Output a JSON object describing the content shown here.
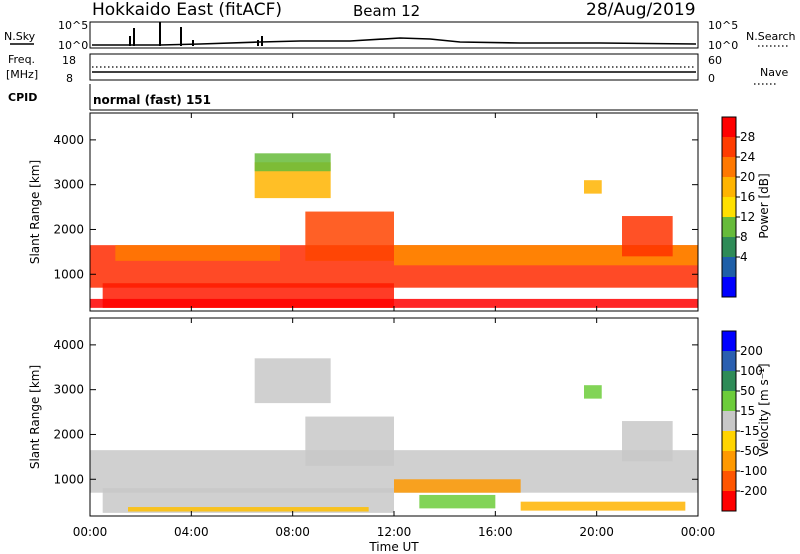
{
  "header": {
    "station": "Hokkaido East (fitACF)",
    "beam": "Beam 12",
    "date": "28/Aug/2019"
  },
  "side_labels": {
    "nsky": "N.Sky",
    "nsearch": "N.Search",
    "freq_line1": "Freq.",
    "freq_line2": "[MHz]",
    "nave": "Nave",
    "cpid": "CPID"
  },
  "noise_panel": {
    "left_ticks": [
      "10^5",
      "10^0"
    ],
    "right_ticks": [
      "10^5",
      "10^0"
    ]
  },
  "freq_panel": {
    "left_ticks": [
      "18",
      "8"
    ],
    "right_ticks": [
      "60",
      "0"
    ]
  },
  "cpid_panel": {
    "label": "normal (fast) 151"
  },
  "power_colorbar": {
    "title": "Power [dB]",
    "ticks": [
      "28",
      "24",
      "20",
      "16",
      "12",
      "8",
      "4"
    ],
    "colors": [
      "#ff0000",
      "#ff3c00",
      "#ff7800",
      "#ffb400",
      "#ffe000",
      "#66bb3a",
      "#2e8b57",
      "#1e5fa8",
      "#0000ff"
    ]
  },
  "velocity_colorbar": {
    "title": "Velocity [m s⁻¹]",
    "ticks": [
      "200",
      "100",
      "50",
      "15",
      "-15",
      "-50",
      "-100",
      "-200"
    ],
    "colors": [
      "#0000ff",
      "#2a5fb0",
      "#2e8b57",
      "#6ccc3a",
      "#c8c8c8",
      "#ffd400",
      "#ff9900",
      "#ff5500",
      "#ff0000"
    ]
  },
  "chart_data": [
    {
      "type": "heatmap",
      "panel": "power",
      "ylabel": "Slant Range [km]",
      "xlim": [
        "00:00",
        "24:00"
      ],
      "ylim": [
        180,
        4600
      ],
      "yticks": [
        1000,
        2000,
        3000,
        4000
      ],
      "regions": [
        {
          "t": [
            0.0,
            24.0
          ],
          "r": [
            700,
            1650
          ],
          "color": "#ff2a00"
        },
        {
          "t": [
            0.5,
            12.0
          ],
          "r": [
            250,
            800
          ],
          "color": "#ff1a00"
        },
        {
          "t": [
            1.0,
            7.5
          ],
          "r": [
            1300,
            1650
          ],
          "color": "#ff7a00"
        },
        {
          "t": [
            6.5,
            9.5
          ],
          "r": [
            2700,
            3500
          ],
          "color": "#ffb400"
        },
        {
          "t": [
            6.5,
            9.5
          ],
          "r": [
            3300,
            3700
          ],
          "color": "#66bb3a"
        },
        {
          "t": [
            8.5,
            12.0
          ],
          "r": [
            1300,
            2400
          ],
          "color": "#ff4400"
        },
        {
          "t": [
            12.0,
            24.0
          ],
          "r": [
            1200,
            1650
          ],
          "color": "#ff8c00"
        },
        {
          "t": [
            19.5,
            20.2
          ],
          "r": [
            2800,
            3100
          ],
          "color": "#ffb400"
        },
        {
          "t": [
            21.0,
            23.0
          ],
          "r": [
            1400,
            2300
          ],
          "color": "#ff3300"
        },
        {
          "t": [
            0.0,
            24.0
          ],
          "r": [
            250,
            450
          ],
          "color": "#ff0000"
        }
      ]
    },
    {
      "type": "heatmap",
      "panel": "velocity",
      "ylabel": "Slant Range [km]",
      "xlabel": "Time UT",
      "xlim": [
        "00:00",
        "24:00"
      ],
      "ylim": [
        180,
        4600
      ],
      "xticks": [
        "00:00",
        "04:00",
        "08:00",
        "12:00",
        "16:00",
        "20:00",
        "00:00"
      ],
      "yticks": [
        1000,
        2000,
        3000,
        4000
      ],
      "regions": [
        {
          "t": [
            0.0,
            24.0
          ],
          "r": [
            700,
            1650
          ],
          "color": "#c8c8c8"
        },
        {
          "t": [
            0.5,
            12.0
          ],
          "r": [
            250,
            800
          ],
          "color": "#c8c8c8"
        },
        {
          "t": [
            6.5,
            9.5
          ],
          "r": [
            2700,
            3700
          ],
          "color": "#c8c8c8"
        },
        {
          "t": [
            8.5,
            12.0
          ],
          "r": [
            1300,
            2400
          ],
          "color": "#c8c8c8"
        },
        {
          "t": [
            21.0,
            23.0
          ],
          "r": [
            1400,
            2300
          ],
          "color": "#c8c8c8"
        },
        {
          "t": [
            1.5,
            11.0
          ],
          "r": [
            280,
            380
          ],
          "color": "#ffc000"
        },
        {
          "t": [
            12.0,
            17.0
          ],
          "r": [
            700,
            1000
          ],
          "color": "#ff9900"
        },
        {
          "t": [
            13.0,
            16.0
          ],
          "r": [
            350,
            650
          ],
          "color": "#6ccc3a"
        },
        {
          "t": [
            17.0,
            23.5
          ],
          "r": [
            300,
            500
          ],
          "color": "#ffb400"
        },
        {
          "t": [
            19.5,
            20.2
          ],
          "r": [
            2800,
            3100
          ],
          "color": "#6ccc3a"
        }
      ]
    }
  ]
}
